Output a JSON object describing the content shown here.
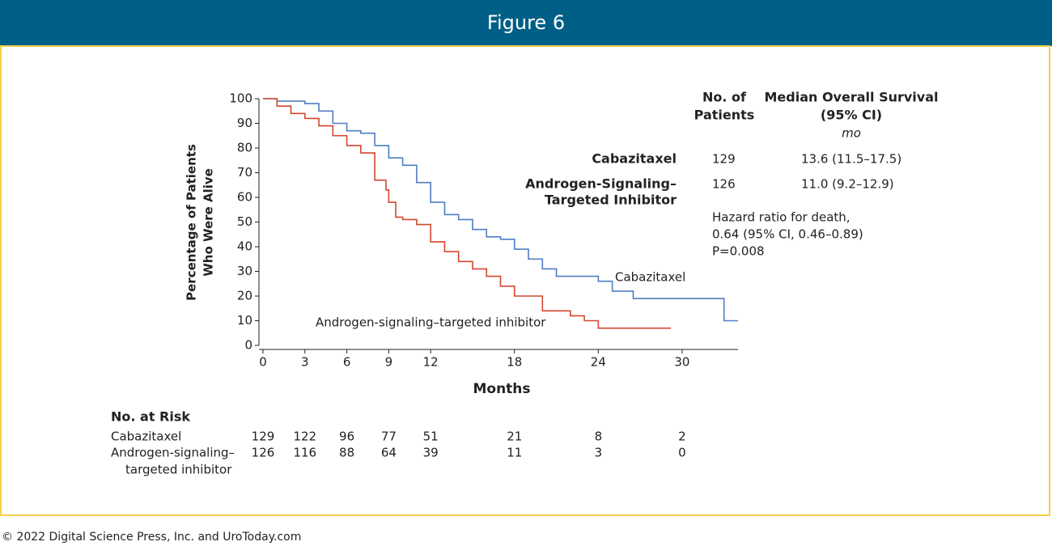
{
  "figure_label": "Figure 6",
  "footer": "© 2022 Digital Science Press, Inc. and UroToday.com",
  "chart_data": {
    "type": "line",
    "step": true,
    "y_label": [
      "Percentage of Patients",
      "Who Were Alive"
    ],
    "x_label": "Months",
    "xlim": [
      0,
      34
    ],
    "xticks": [
      0,
      3,
      6,
      9,
      12,
      18,
      24,
      30
    ],
    "ylim": [
      0,
      100
    ],
    "yticks": [
      0,
      10,
      20,
      30,
      40,
      50,
      60,
      70,
      80,
      90,
      100
    ],
    "series": [
      {
        "name": "Cabazitaxel",
        "color": "#4f7dc2",
        "x": [
          0,
          1,
          2,
          3,
          4,
          5,
          6,
          7,
          8,
          9,
          10,
          11,
          12,
          13,
          14,
          15,
          16,
          17,
          18,
          19,
          20,
          21,
          24,
          25,
          26.5,
          33,
          34
        ],
        "values": [
          100,
          99,
          99,
          98,
          95,
          90,
          87,
          86,
          81,
          76,
          73,
          66,
          58,
          53,
          51,
          47,
          44,
          43,
          39,
          35,
          31,
          28,
          26,
          22,
          19,
          10,
          10
        ]
      },
      {
        "name": "Androgen-signaling–targeted inhibitor",
        "color": "#d2472f",
        "x": [
          0,
          1,
          2,
          3,
          4,
          5,
          6,
          7,
          8,
          8.8,
          9,
          9.5,
          10,
          11,
          12,
          13,
          14,
          15,
          16,
          17,
          18,
          19,
          20,
          22,
          23,
          24,
          29.2
        ],
        "values": [
          100,
          97,
          94,
          92,
          89,
          85,
          81,
          78,
          67,
          63,
          58,
          52,
          51,
          49,
          42,
          38,
          34,
          31,
          28,
          24,
          20,
          20,
          14,
          12,
          10,
          7,
          7
        ]
      }
    ],
    "summary": {
      "headers": [
        [
          "No. of",
          "Patients"
        ],
        [
          "Median Overall Survival",
          "(95% CI)",
          "mo"
        ]
      ],
      "rows": [
        {
          "label": [
            "Cabazitaxel"
          ],
          "patients": 129,
          "median": "13.6 (11.5–17.5)"
        },
        {
          "label": [
            "Androgen-Signaling–",
            "Targeted Inhibitor"
          ],
          "patients": 126,
          "median": "11.0 (9.2–12.9)"
        }
      ],
      "hazard": [
        "Hazard ratio for death,",
        "0.64 (95% CI, 0.46–0.89)",
        "P=0.008"
      ]
    },
    "at_risk": {
      "title": "No. at Risk",
      "rows": [
        {
          "label": [
            "Cabazitaxel"
          ],
          "values": [
            129,
            122,
            96,
            77,
            51,
            21,
            8,
            2
          ]
        },
        {
          "label": [
            "Androgen-signaling–",
            "targeted inhibitor"
          ],
          "values": [
            126,
            116,
            88,
            64,
            39,
            11,
            3,
            0
          ]
        }
      ]
    }
  }
}
